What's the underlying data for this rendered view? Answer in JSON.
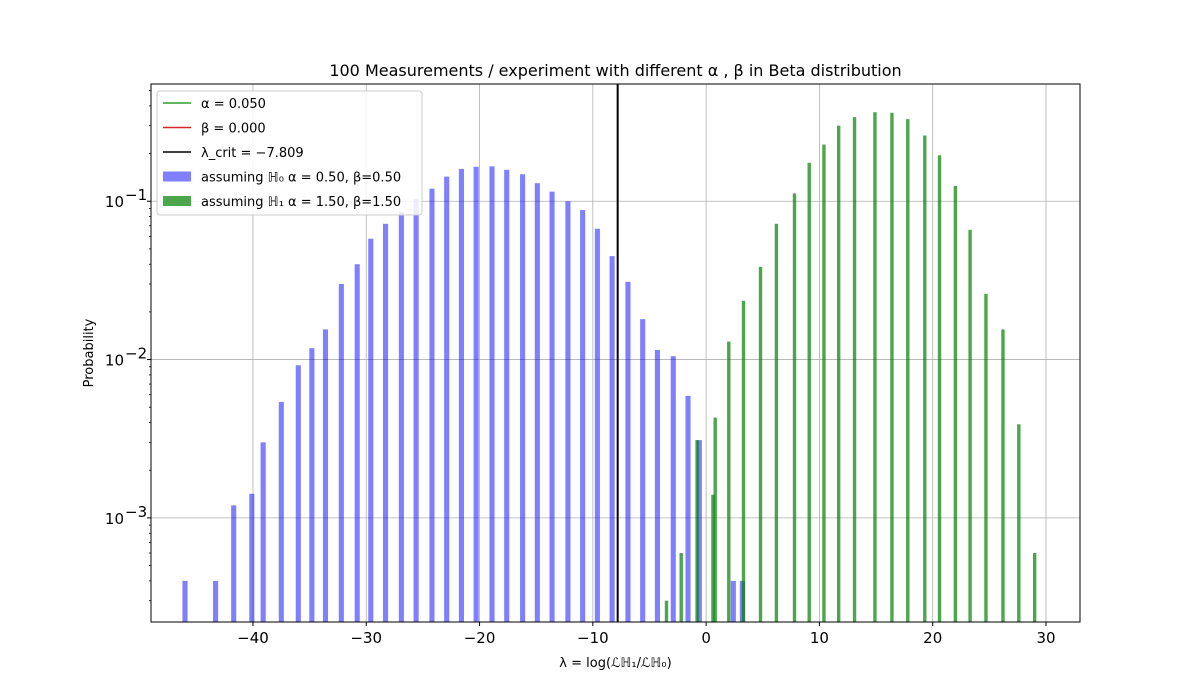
{
  "chart_data": {
    "type": "bar",
    "title": "100 Measurements / experiment with different α , β in Beta distribution",
    "xlabel": "λ = log(ℒℍ₁/ℒℍ₀)",
    "ylabel": "Probability",
    "xlim": [
      -49,
      33
    ],
    "ylim": [
      0.00022,
      0.55
    ],
    "yscale": "log",
    "grid": true,
    "legend_position": "upper-left",
    "x_ticks": [
      {
        "value": -40,
        "label": "−40"
      },
      {
        "value": -30,
        "label": "−30"
      },
      {
        "value": -20,
        "label": "−20"
      },
      {
        "value": -10,
        "label": "−10"
      },
      {
        "value": 0,
        "label": "0"
      },
      {
        "value": 10,
        "label": "10"
      },
      {
        "value": 20,
        "label": "20"
      },
      {
        "value": 30,
        "label": "30"
      }
    ],
    "y_ticks": [
      {
        "value": 0.001,
        "base": "10",
        "exp": "−3"
      },
      {
        "value": 0.01,
        "base": "10",
        "exp": "−2"
      },
      {
        "value": 0.1,
        "base": "10",
        "exp": "−1"
      }
    ],
    "lines": [
      {
        "name": "α = 0.050",
        "color": "#2ca02c",
        "kind": "legend-only"
      },
      {
        "name": "β = 0.000",
        "color": "#d62728",
        "kind": "legend-only"
      },
      {
        "name": "λ_crit = −7.809",
        "color": "#000000",
        "kind": "vline",
        "x": -7.809
      }
    ],
    "series": [
      {
        "name": "assuming ℍ₀ α = 0.50, β=0.50",
        "color": "#0000ff",
        "opacity": 0.5,
        "bar_width": 0.45,
        "points": [
          [
            -46.0,
            0.0004
          ],
          [
            -43.3,
            0.0004
          ],
          [
            -41.7,
            0.0012
          ],
          [
            -40.1,
            0.00142
          ],
          [
            -39.1,
            0.003
          ],
          [
            -37.5,
            0.0054
          ],
          [
            -36.0,
            0.0092
          ],
          [
            -34.8,
            0.0118
          ],
          [
            -33.6,
            0.0155
          ],
          [
            -32.2,
            0.03
          ],
          [
            -30.8,
            0.04
          ],
          [
            -29.6,
            0.058
          ],
          [
            -28.3,
            0.072
          ],
          [
            -26.9,
            0.086
          ],
          [
            -25.6,
            0.103
          ],
          [
            -24.2,
            0.12
          ],
          [
            -22.9,
            0.143
          ],
          [
            -21.6,
            0.16
          ],
          [
            -20.3,
            0.165
          ],
          [
            -18.9,
            0.166
          ],
          [
            -17.6,
            0.158
          ],
          [
            -16.2,
            0.148
          ],
          [
            -14.9,
            0.13
          ],
          [
            -13.6,
            0.115
          ],
          [
            -12.2,
            0.1
          ],
          [
            -10.9,
            0.088
          ],
          [
            -9.6,
            0.067
          ],
          [
            -8.3,
            0.045
          ],
          [
            -6.9,
            0.031
          ],
          [
            -5.6,
            0.018
          ],
          [
            -4.3,
            0.0115
          ],
          [
            -2.9,
            0.0105
          ],
          [
            -1.6,
            0.0059
          ],
          [
            -0.6,
            0.0031
          ],
          [
            2.4,
            0.0004
          ],
          [
            3.2,
            0.0004
          ]
        ]
      },
      {
        "name": "assuming ℍ₁ α = 1.50, β=1.50",
        "color": "#008000",
        "opacity": 0.7,
        "bar_width": 0.3,
        "points": [
          [
            -3.5,
            0.0003
          ],
          [
            -2.2,
            0.0006
          ],
          [
            -0.8,
            0.0031
          ],
          [
            0.6,
            0.0014
          ],
          [
            0.8,
            0.0043
          ],
          [
            2.0,
            0.013
          ],
          [
            3.3,
            0.0235
          ],
          [
            4.8,
            0.0385
          ],
          [
            6.2,
            0.072
          ],
          [
            7.8,
            0.112
          ],
          [
            9.1,
            0.175
          ],
          [
            10.4,
            0.228
          ],
          [
            11.7,
            0.3
          ],
          [
            13.1,
            0.34
          ],
          [
            14.9,
            0.365
          ],
          [
            16.4,
            0.362
          ],
          [
            17.8,
            0.33
          ],
          [
            19.3,
            0.26
          ],
          [
            20.6,
            0.195
          ],
          [
            22.0,
            0.125
          ],
          [
            23.3,
            0.066
          ],
          [
            24.7,
            0.026
          ],
          [
            26.2,
            0.0155
          ],
          [
            27.6,
            0.0039
          ],
          [
            29.0,
            0.0006
          ]
        ]
      }
    ]
  }
}
